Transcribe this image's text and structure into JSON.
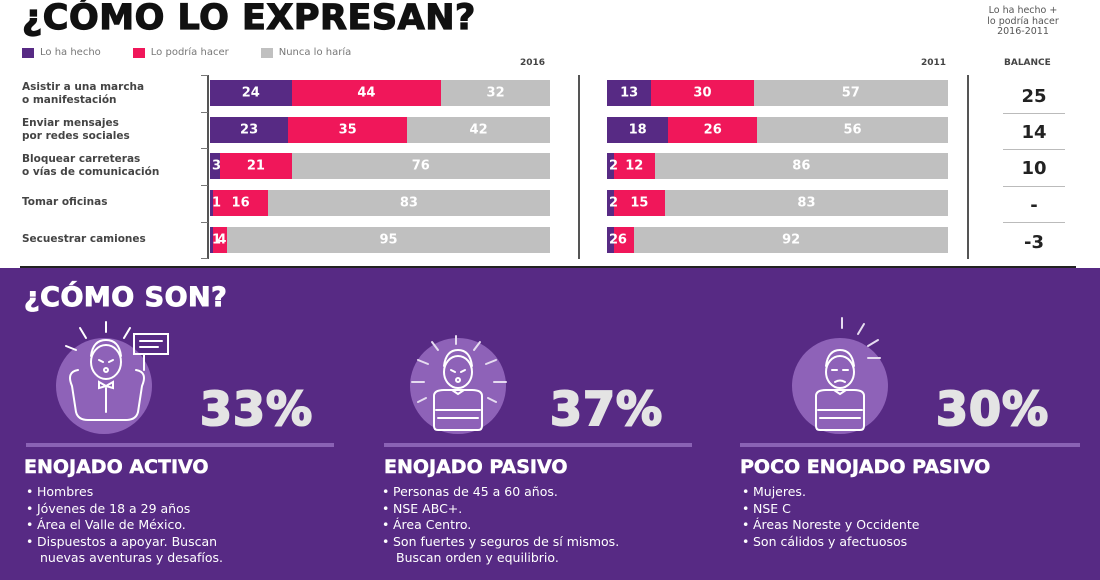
{
  "top_section": {
    "title": "¿CÓMO LO EXPRESAN?",
    "note_lines": [
      "Lo ha hecho +",
      "lo podría hacer",
      "2016-2011"
    ],
    "col_2016": "2016",
    "col_2011": "2011",
    "col_balance": "BALANCE"
  },
  "chart_data": {
    "type": "bar",
    "orientation": "horizontal-stacked-100",
    "title": "¿CÓMO LO EXPRESAN?",
    "legend": [
      {
        "name": "Lo ha hecho",
        "color": "#572a84"
      },
      {
        "name": "Lo podría hacer",
        "color": "#f0175a"
      },
      {
        "name": "Nunca lo haría",
        "color": "#c0c0c0"
      }
    ],
    "legend_position": "top-left",
    "categories": [
      [
        "Asistir a una marcha",
        "o manifestación"
      ],
      [
        "Enviar mensajes",
        "por redes sociales"
      ],
      [
        "Bloquear carreteras",
        "o vías de comunicación"
      ],
      [
        "Tomar oficinas"
      ],
      [
        "Secuestrar camiones"
      ]
    ],
    "panels": [
      {
        "year": "2016",
        "series": [
          {
            "name": "Lo ha hecho",
            "values": [
              24,
              23,
              3,
              1,
              1
            ]
          },
          {
            "name": "Lo podría hacer",
            "values": [
              44,
              35,
              21,
              16,
              4
            ]
          },
          {
            "name": "Nunca lo haría",
            "values": [
              32,
              42,
              76,
              83,
              95
            ]
          }
        ]
      },
      {
        "year": "2011",
        "series": [
          {
            "name": "Lo ha hecho",
            "values": [
              13,
              18,
              2,
              2,
              2
            ]
          },
          {
            "name": "Lo podría hacer",
            "values": [
              30,
              26,
              12,
              15,
              6
            ]
          },
          {
            "name": "Nunca lo haría",
            "values": [
              57,
              56,
              86,
              83,
              92
            ]
          }
        ]
      }
    ],
    "balance": {
      "label": "BALANCE",
      "description": "Lo ha hecho + lo podría hacer 2016-2011",
      "values": [
        "25",
        "14",
        "10",
        "-",
        "-3"
      ]
    },
    "xlim": [
      0,
      100
    ]
  },
  "bottom_section": {
    "title": "¿CÓMO SON?",
    "profiles": [
      {
        "percent": "33%",
        "name": "ENOJADO ACTIVO",
        "icon": "angry-man-with-sign-icon",
        "bullets": [
          "Hombres",
          "Jóvenes de 18 a 29 años",
          "Área el Valle de México.",
          "Dispuestos a apoyar. Buscan",
          "nuevas aventuras y desafíos."
        ]
      },
      {
        "percent": "37%",
        "name": "ENOJADO PASIVO",
        "icon": "angry-man-arms-crossed-icon",
        "bullets": [
          "Personas de 45 a 60 años.",
          "NSE ABC+.",
          "Área Centro.",
          "Son fuertes y seguros de sí mismos.",
          "Buscan orden y equilibrio."
        ]
      },
      {
        "percent": "30%",
        "name": "POCO ENOJADO PASIVO",
        "icon": "annoyed-man-arms-crossed-icon",
        "bullets": [
          "Mujeres.",
          "NSE C",
          "Áreas Noreste y Occidente",
          "Son cálidos y afectuosos"
        ]
      }
    ]
  }
}
